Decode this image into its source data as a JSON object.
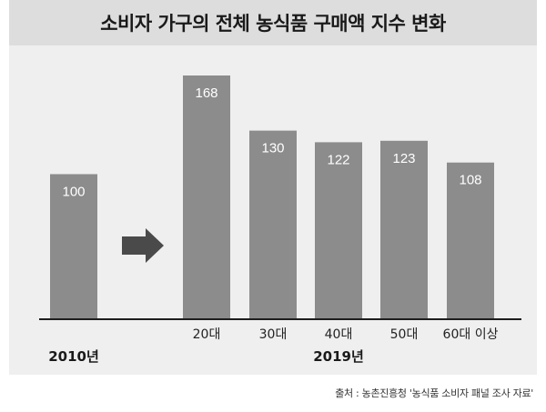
{
  "chart_data": {
    "type": "bar",
    "title": "소비자 가구의 전체 농식품 구매액 지수 변화",
    "categories": [
      "",
      "20대",
      "30대",
      "40대",
      "50대",
      "60대 이상"
    ],
    "values": [
      100,
      168,
      130,
      122,
      123,
      108
    ],
    "groups": [
      {
        "label": "2010년",
        "indices": [
          0
        ]
      },
      {
        "label": "2019년",
        "indices": [
          1,
          2,
          3,
          4,
          5
        ]
      }
    ],
    "ylim": [
      0,
      180
    ],
    "xlabel": "",
    "ylabel": "",
    "grid": false,
    "colors": {
      "bar": "#8c8c8c",
      "arrow": "#4a4a4a",
      "axis": "#1e1e1e"
    }
  },
  "source_note": "출처 : 농촌진흥청 '농식품 소비자 패널 조사 자료'"
}
